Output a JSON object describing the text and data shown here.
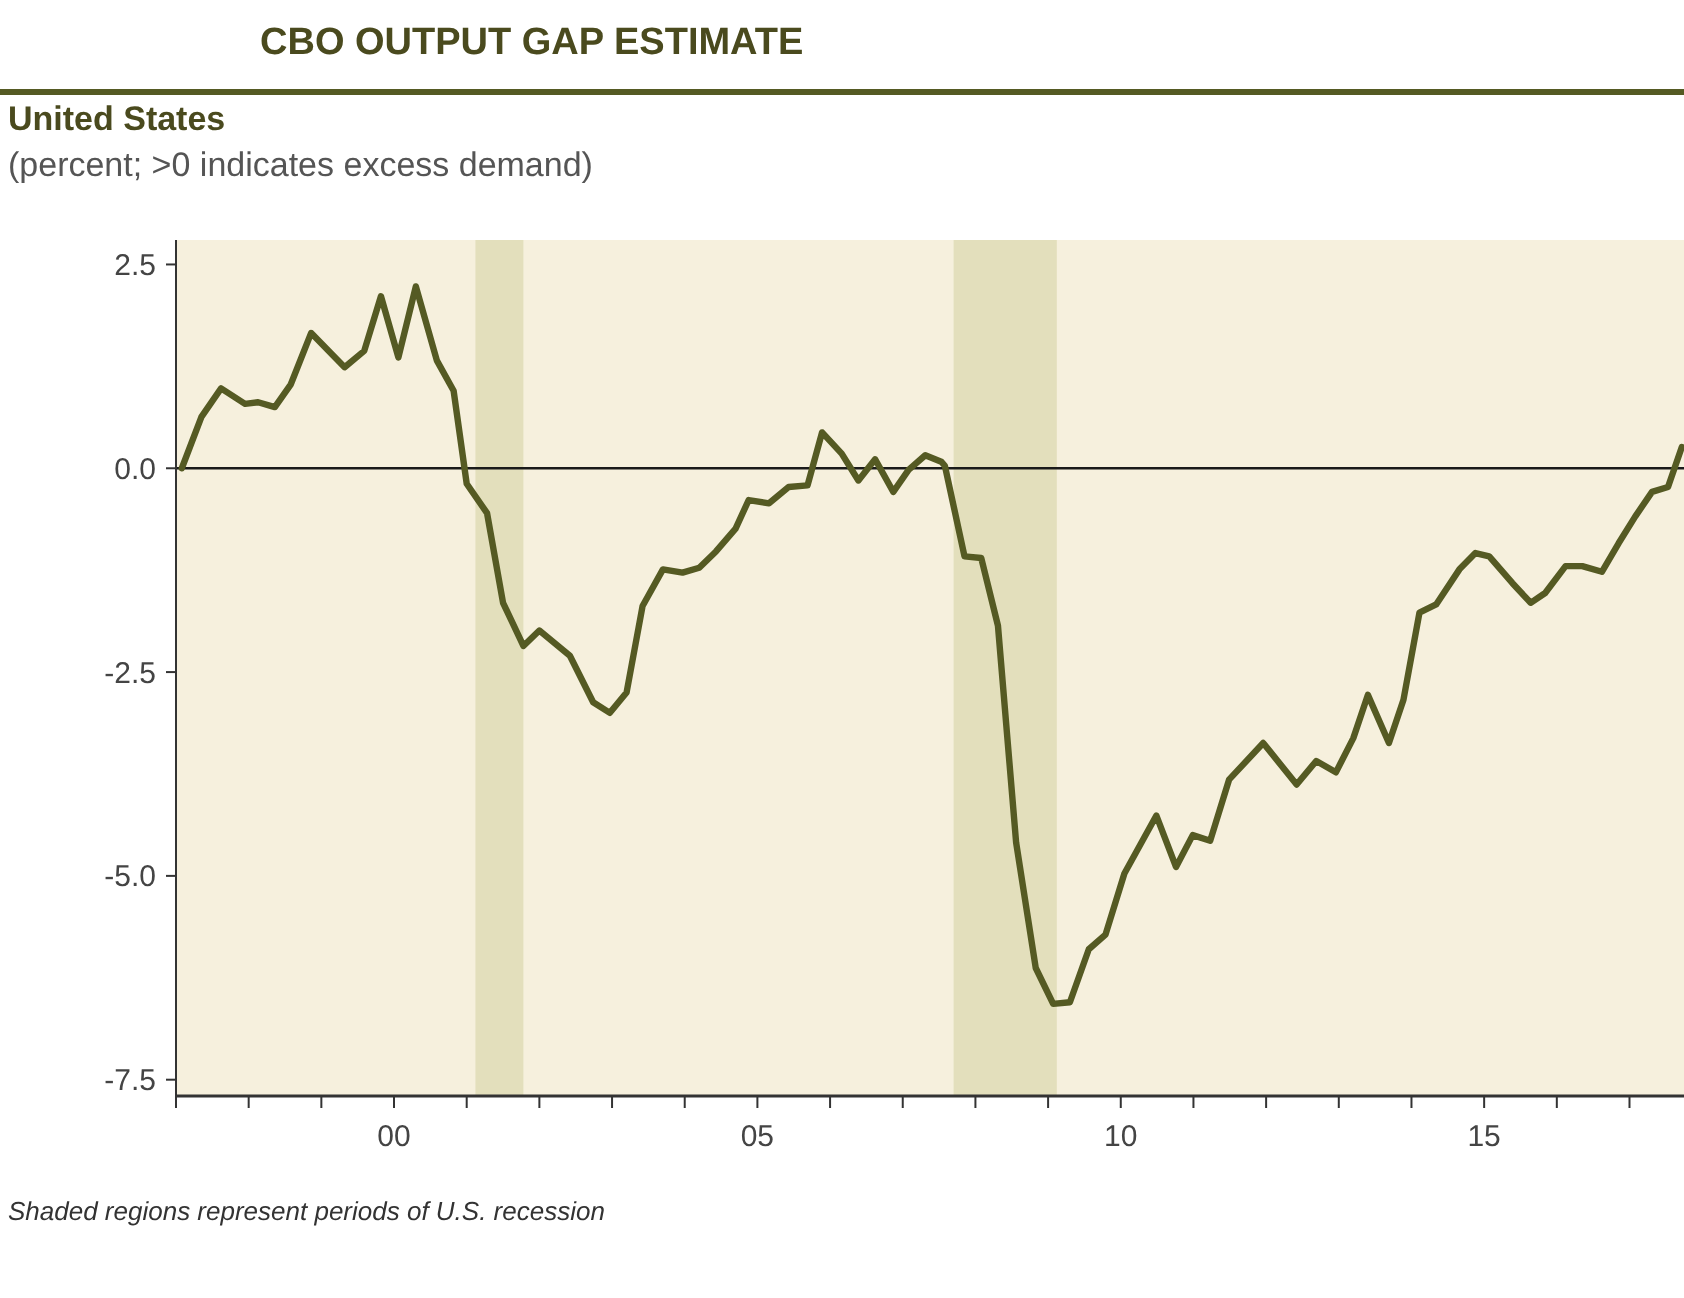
{
  "chart_data": {
    "type": "line",
    "title": "CBO OUTPUT GAP ESTIMATE",
    "subtitle": "United States",
    "ylabel": "(percent; >0 indicates excess demand)",
    "annotations": [
      "Shaded regions represent periods of U.S. recession"
    ],
    "xlim": [
      1997.0,
      2017.75
    ],
    "ylim": [
      -7.7,
      2.8
    ],
    "xticks": [
      {
        "value": 1997,
        "label": null
      },
      {
        "value": 1998,
        "label": null
      },
      {
        "value": 1999,
        "label": null
      },
      {
        "value": 2000,
        "label": "00"
      },
      {
        "value": 2001,
        "label": null
      },
      {
        "value": 2002,
        "label": null
      },
      {
        "value": 2003,
        "label": null
      },
      {
        "value": 2004,
        "label": null
      },
      {
        "value": 2005,
        "label": "05"
      },
      {
        "value": 2006,
        "label": null
      },
      {
        "value": 2007,
        "label": null
      },
      {
        "value": 2008,
        "label": null
      },
      {
        "value": 2009,
        "label": null
      },
      {
        "value": 2010,
        "label": "10"
      },
      {
        "value": 2011,
        "label": null
      },
      {
        "value": 2012,
        "label": null
      },
      {
        "value": 2013,
        "label": null
      },
      {
        "value": 2014,
        "label": null
      },
      {
        "value": 2015,
        "label": "15"
      },
      {
        "value": 2016,
        "label": null
      },
      {
        "value": 2017,
        "label": null
      }
    ],
    "yticks": [
      {
        "value": 2.5,
        "label": "2.5"
      },
      {
        "value": 0,
        "label": "0.0"
      },
      {
        "value": -2.5,
        "label": "-2.5"
      },
      {
        "value": -5,
        "label": "-5.0"
      },
      {
        "value": -7.5,
        "label": "-7.5"
      }
    ],
    "grid": false,
    "marker": "none",
    "line_style": "solid",
    "ref_lines": [
      {
        "axis": "y",
        "value": 0,
        "label": null,
        "color": "#1a1a1a"
      }
    ],
    "bands": [
      {
        "axis": "x",
        "from": 2001.12,
        "to": 2001.78,
        "label": null,
        "color": "#e3dfbc"
      },
      {
        "axis": "x",
        "from": 2007.7,
        "to": 2009.12,
        "label": null,
        "color": "#e3dfbc"
      }
    ],
    "series": [
      {
        "color": "#555a23",
        "x": [
          1997.08,
          1997.35,
          1997.62,
          1997.95,
          1998.13,
          1998.36,
          1998.58,
          1998.86,
          1999.32,
          1999.59,
          1999.82,
          2000.06,
          2000.3,
          2000.59,
          2000.82,
          2001.0,
          2001.28,
          2001.5,
          2001.78,
          2002.0,
          2002.42,
          2002.74,
          2002.97,
          2003.2,
          2003.42,
          2003.7,
          2003.97,
          2004.2,
          2004.43,
          2004.7,
          2004.88,
          2005.16,
          2005.43,
          2005.69,
          2005.89,
          2006.16,
          2006.39,
          2006.62,
          2006.87,
          2007.08,
          2007.31,
          2007.53,
          2007.58,
          2007.85,
          2008.08,
          2008.31,
          2008.56,
          2008.83,
          2009.07,
          2009.3,
          2009.56,
          2009.79,
          2010.05,
          2010.49,
          2010.76,
          2010.99,
          2011.23,
          2011.49,
          2011.96,
          2012.42,
          2012.69,
          2012.96,
          2013.2,
          2013.4,
          2013.69,
          2013.89,
          2014.11,
          2014.34,
          2014.66,
          2014.88,
          2015.07,
          2015.39,
          2015.64,
          2015.84,
          2016.12,
          2016.35,
          2016.62,
          2016.85,
          2017.08,
          2017.31,
          2017.53,
          2017.72
        ],
        "values": [
          0.0,
          0.63,
          0.98,
          0.79,
          0.81,
          0.75,
          1.03,
          1.66,
          1.24,
          1.44,
          2.11,
          1.36,
          2.23,
          1.32,
          0.95,
          -0.19,
          -0.55,
          -1.65,
          -2.18,
          -1.99,
          -2.3,
          -2.87,
          -3.0,
          -2.75,
          -1.69,
          -1.24,
          -1.28,
          -1.22,
          -1.02,
          -0.74,
          -0.39,
          -0.43,
          -0.23,
          -0.21,
          0.44,
          0.18,
          -0.15,
          0.11,
          -0.29,
          -0.02,
          0.16,
          0.08,
          0.03,
          -1.08,
          -1.1,
          -1.93,
          -4.59,
          -6.13,
          -6.57,
          -6.55,
          -5.9,
          -5.72,
          -4.97,
          -4.26,
          -4.89,
          -4.5,
          -4.57,
          -3.82,
          -3.37,
          -3.88,
          -3.59,
          -3.73,
          -3.31,
          -2.78,
          -3.37,
          -2.84,
          -1.77,
          -1.67,
          -1.24,
          -1.04,
          -1.08,
          -1.41,
          -1.65,
          -1.53,
          -1.2,
          -1.2,
          -1.27,
          -0.92,
          -0.59,
          -0.29,
          -0.23,
          0.26
        ]
      }
    ]
  }
}
